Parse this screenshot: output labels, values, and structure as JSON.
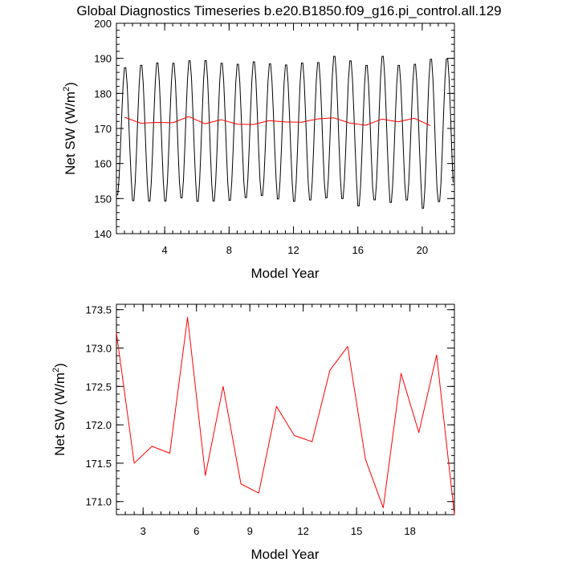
{
  "title": "Global Diagnostics Timeseries b.e20.B1850.f09_g16.pi_control.all.129",
  "chart_data": [
    {
      "type": "line",
      "xlabel": "Model Year",
      "ylabel": "Net SW (W/m",
      "ylabel_sup": "2",
      "ylabel_close": ")",
      "xlim": [
        1.0,
        22.0
      ],
      "ylim": [
        140,
        200
      ],
      "xticks": [
        4,
        8,
        12,
        16,
        20
      ],
      "yticks": [
        140,
        150,
        160,
        170,
        180,
        190,
        200
      ],
      "x_minor_step": 0.5,
      "y_minor_step": 2,
      "series": [
        {
          "line_color": "#000000",
          "monthly_max": [
            188.0,
            188.7,
            189.4,
            189.3,
            190.0,
            190.1,
            189.3,
            189.0,
            189.7,
            189.1,
            188.8,
            189.4,
            189.5,
            191.3,
            190.0,
            188.7,
            191.3,
            188.7,
            189.0,
            190.5,
            190.6
          ],
          "monthly_min": [
            150.4,
            148.7,
            148.6,
            148.6,
            149.5,
            148.5,
            148.6,
            148.8,
            149.6,
            150.2,
            149.2,
            148.5,
            148.9,
            149.5,
            149.3,
            147.2,
            148.9,
            148.2,
            148.9,
            146.5,
            148.4
          ]
        },
        {
          "line_color": "#ff0000",
          "x": [
            1.5,
            2.5,
            3.5,
            4.5,
            5.5,
            6.5,
            7.5,
            8.5,
            9.5,
            10.5,
            11.5,
            12.5,
            13.5,
            14.5,
            15.5,
            16.5,
            17.5,
            18.5,
            19.5,
            20.5
          ],
          "values": [
            173.2,
            171.5,
            171.72,
            171.63,
            173.4,
            171.34,
            172.5,
            171.23,
            171.11,
            172.24,
            171.86,
            171.78,
            172.71,
            173.02,
            171.55,
            170.92,
            172.67,
            171.9,
            172.91,
            170.83
          ]
        }
      ]
    },
    {
      "type": "line",
      "xlabel": "Model Year",
      "ylabel": "Net SW (W/m",
      "ylabel_sup": "2",
      "ylabel_close": ")",
      "xlim": [
        1.5,
        20.5
      ],
      "ylim": [
        170.83,
        173.57
      ],
      "xticks": [
        3,
        6,
        9,
        12,
        15,
        18
      ],
      "yticks": [
        "171.0",
        "171.5",
        "172.0",
        "172.5",
        "173.0",
        "173.5"
      ],
      "x_minor_step": 0.5,
      "y_minor_step": 0.1,
      "series": [
        {
          "line_color": "#ff0000",
          "x": [
            1.5,
            2.5,
            3.5,
            4.5,
            5.5,
            6.5,
            7.5,
            8.5,
            9.5,
            10.5,
            11.5,
            12.5,
            13.5,
            14.5,
            15.5,
            16.5,
            17.5,
            18.5,
            19.5,
            20.5
          ],
          "values": [
            173.2,
            171.5,
            171.72,
            171.63,
            173.4,
            171.34,
            172.5,
            171.23,
            171.11,
            172.24,
            171.86,
            171.78,
            172.71,
            173.02,
            171.55,
            170.92,
            172.67,
            171.9,
            172.91,
            170.83
          ]
        }
      ]
    }
  ]
}
